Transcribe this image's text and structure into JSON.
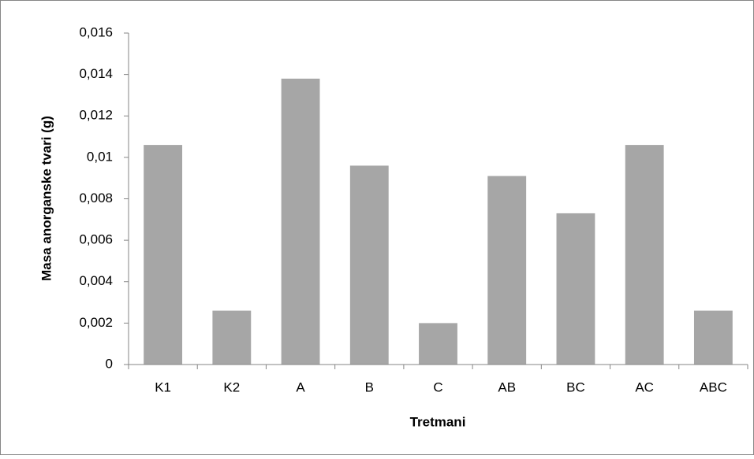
{
  "chart_data": {
    "type": "bar",
    "xlabel": "Tretmani",
    "ylabel": "Masa anorganske tvari (g)",
    "categories": [
      "K1",
      "K2",
      "A",
      "B",
      "C",
      "AB",
      "BC",
      "AC",
      "ABC"
    ],
    "values": [
      0.0106,
      0.0026,
      0.0138,
      0.0096,
      0.002,
      0.0091,
      0.0073,
      0.0106,
      0.0026
    ],
    "color": "#a6a6a6",
    "ylim": [
      0,
      0.016
    ],
    "yticks": [
      0,
      {
        "value": 0.002,
        "label": "0,002"
      },
      {
        "value": 0.004,
        "label": "0,004"
      },
      {
        "value": 0.006,
        "label": "0,006"
      },
      {
        "value": 0.008,
        "label": "0,008"
      },
      {
        "value": 0.01,
        "label": "0,01"
      },
      {
        "value": 0.012,
        "label": "0,012"
      },
      {
        "value": 0.014,
        "label": "0,014"
      },
      {
        "value": 0.016,
        "label": "0,016"
      }
    ],
    "grid": false
  }
}
